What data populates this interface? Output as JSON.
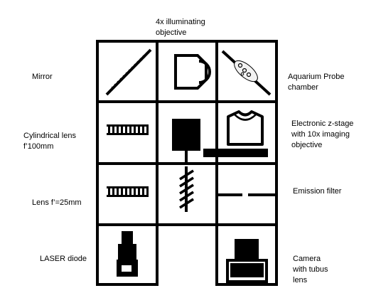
{
  "labels": {
    "objective": "4x illuminating\nobjective",
    "mirror": "Mirror",
    "aquarium": "Aquarium Probe\nchamber",
    "cyl_lens": "Cylindrical lens\nf’100mm",
    "zstage": "Electronic z-stage\nwith 10x imaging\nobjective",
    "lens25": "Lens f’=25mm",
    "emission": "Emission filter",
    "laser": "LASER diode",
    "camera": "Camera\nwith tubus\nlens"
  },
  "components": [
    {
      "cell": "row1-col1",
      "icon": "mirror-icon"
    },
    {
      "cell": "row1-col2",
      "icon": "objective-icon"
    },
    {
      "cell": "row1-col3",
      "icon": "aquarium-probe-chamber-icon"
    },
    {
      "cell": "row2-col1",
      "icon": "cylindrical-lens-icon"
    },
    {
      "cell": "row2-col2",
      "icon": "beam-block-icon"
    },
    {
      "cell": "row2-col3",
      "icon": "z-stage-objective-icon"
    },
    {
      "cell": "row3-col1",
      "icon": "lens-icon"
    },
    {
      "cell": "row3-col2",
      "icon": "slanted-beam-icon"
    },
    {
      "cell": "row3-col3",
      "icon": "emission-filter-icon"
    },
    {
      "cell": "row4-col1",
      "icon": "laser-diode-icon"
    },
    {
      "cell": "row4-col3",
      "icon": "camera-icon"
    }
  ]
}
